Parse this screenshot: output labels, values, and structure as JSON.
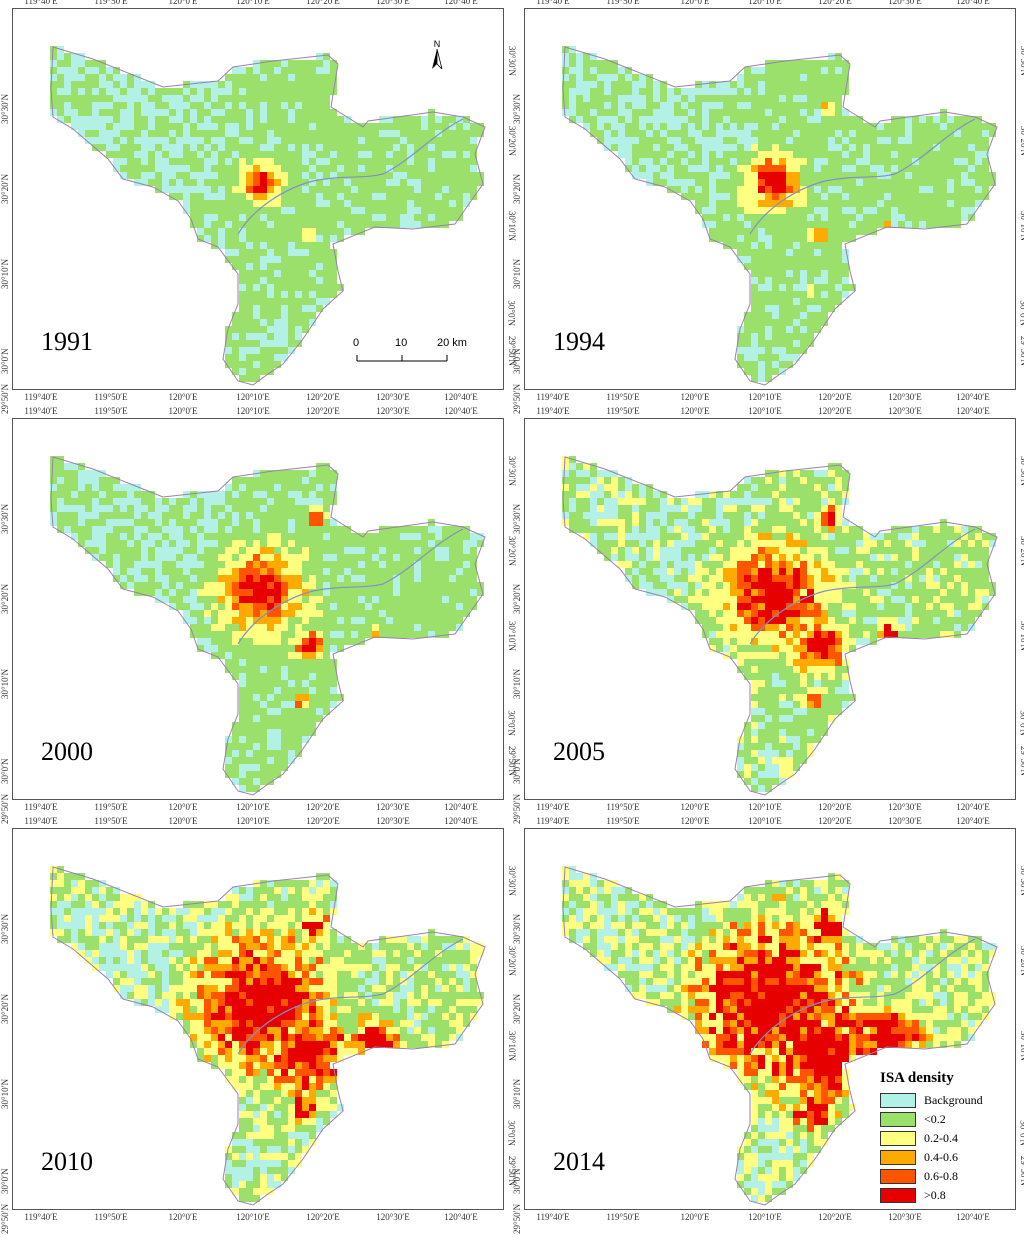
{
  "lon_ticks": [
    "119°40′E",
    "119°50′E",
    "120°0′E",
    "120°10′E",
    "120°20′E",
    "120°30′E",
    "120°40′E"
  ],
  "lat_ticks": [
    "30°30′N",
    "30°20′N",
    "30°10′N",
    "30°0′N",
    "29°50′N"
  ],
  "panels": [
    {
      "year": "1991",
      "level": 0
    },
    {
      "year": "1994",
      "level": 1
    },
    {
      "year": "2000",
      "level": 2
    },
    {
      "year": "2005",
      "level": 3
    },
    {
      "year": "2010",
      "level": 4
    },
    {
      "year": "2014",
      "level": 5
    }
  ],
  "scale": {
    "labels": [
      "0",
      "10",
      "20 km"
    ]
  },
  "north_label": "N",
  "legend": {
    "title": "ISA density",
    "items": [
      {
        "label": "Background",
        "color": "#b3f0e6"
      },
      {
        "label": "<0.2",
        "color": "#9be06a"
      },
      {
        "label": "0.2-0.4",
        "color": "#ffff80"
      },
      {
        "label": "0.4-0.6",
        "color": "#ffaa00"
      },
      {
        "label": "0.6-0.8",
        "color": "#ff5500"
      },
      {
        "label": ">0.8",
        "color": "#e60000"
      }
    ]
  }
}
